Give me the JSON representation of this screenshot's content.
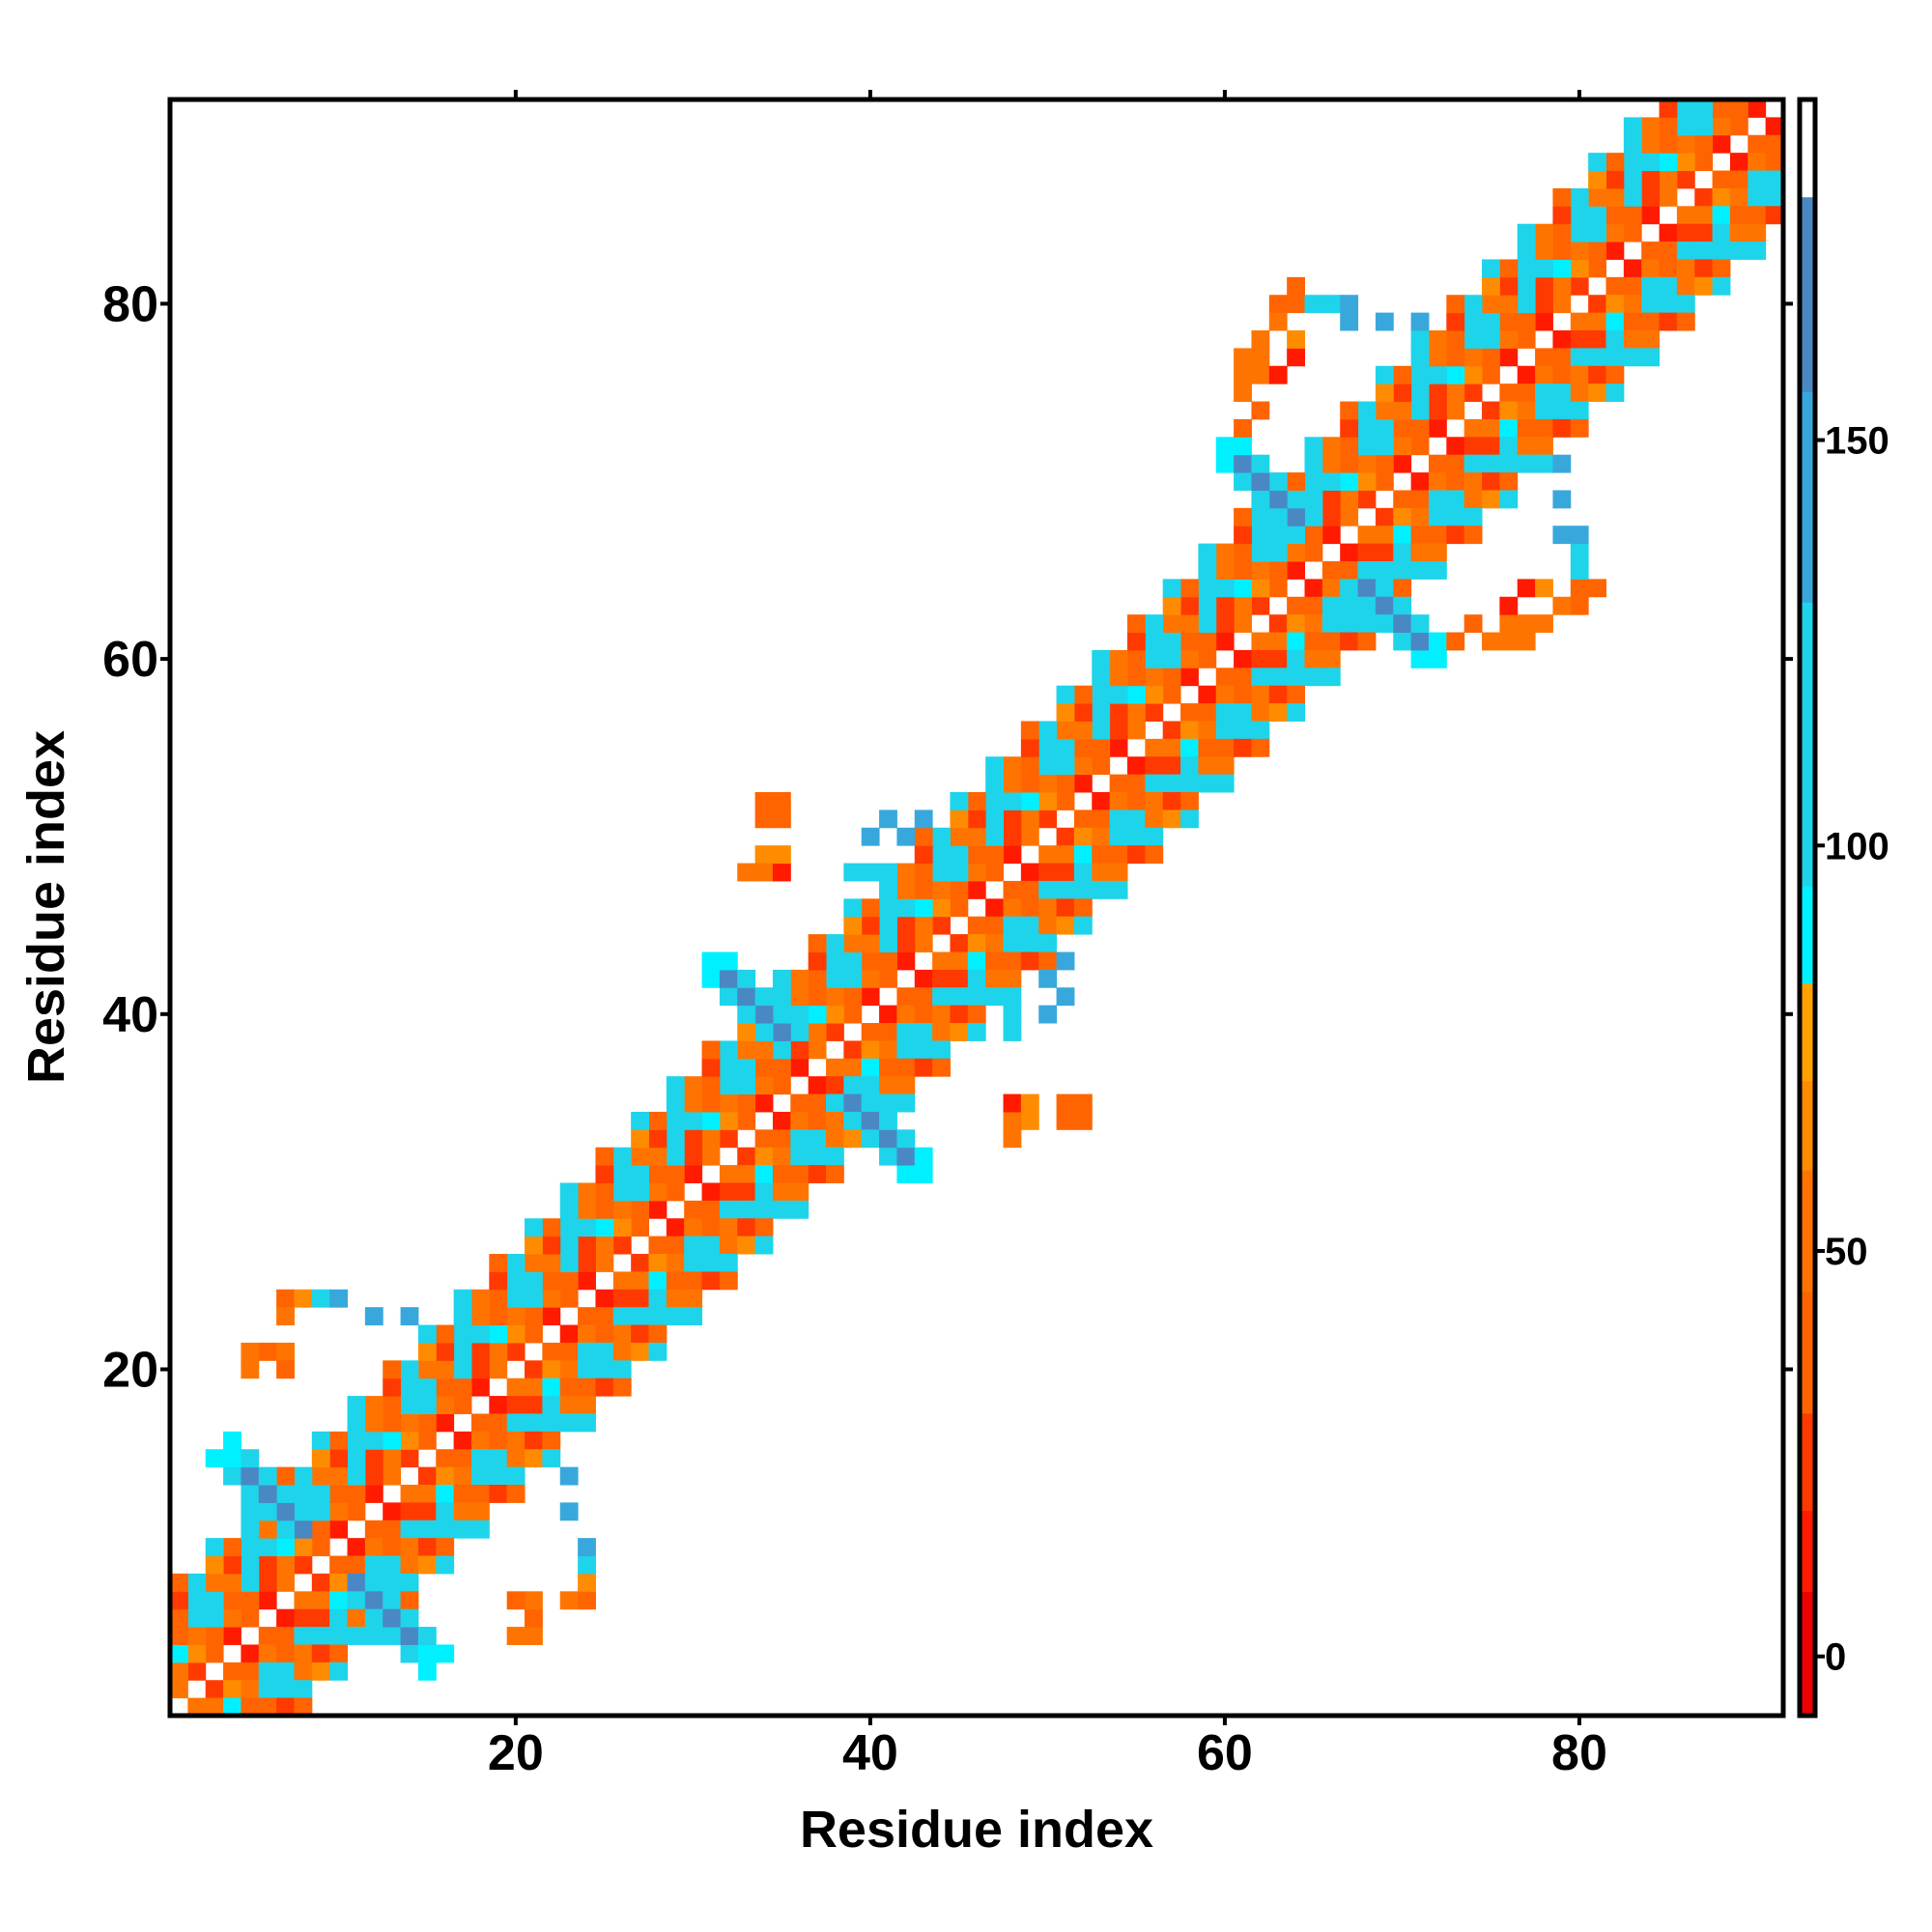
{
  "chart_data": {
    "type": "heatmap",
    "title": "",
    "xlabel": "Residue index",
    "ylabel": "Residue index",
    "xlim": [
      0.5,
      91.5
    ],
    "ylim": [
      0.5,
      91.5
    ],
    "n_residues": 91,
    "x_ticks": [
      20,
      40,
      60,
      80
    ],
    "y_ticks": [
      20,
      40,
      60,
      80
    ],
    "x_tick_labels": [
      "20",
      "40",
      "60",
      "80"
    ],
    "y_tick_labels": [
      "20",
      "40",
      "60",
      "80"
    ],
    "symmetric": true,
    "diagonal_bands": [
      {
        "offset": 1,
        "values": [
          40,
          15,
          55,
          25,
          45,
          10
        ]
      },
      {
        "offset": 2,
        "values": [
          60,
          35,
          20,
          50,
          70,
          45
        ]
      },
      {
        "offset": 3,
        "values": [
          100,
          45,
          110,
          30,
          95,
          55
        ]
      },
      {
        "offset": 4,
        "values": [
          105,
          120,
          60,
          100,
          115,
          40
        ]
      },
      {
        "offset": 5,
        "values": [
          40,
          100,
          55,
          25,
          110,
          60
        ]
      },
      {
        "offset": 6,
        "values": [
          50,
          30,
          105,
          65,
          45,
          100
        ]
      },
      {
        "offset": 7,
        "values": [
          110,
          null,
          45,
          null,
          100,
          null
        ]
      }
    ],
    "hairpins": [
      {
        "center": 9.5,
        "min_sep": 3,
        "max_sep": 12,
        "core_value": 160,
        "edge_value": 125
      },
      {
        "center": 37,
        "min_sep": 3,
        "max_sep": 12,
        "core_value": 160,
        "edge_value": 120
      },
      {
        "center": 66,
        "min_sep": 3,
        "max_sep": 12,
        "core_value": 165,
        "edge_value": 120
      }
    ],
    "extra_contacts": [
      [
        7,
        24,
        45
      ],
      [
        7,
        23,
        50
      ],
      [
        8,
        24,
        65
      ],
      [
        9,
        24,
        100
      ],
      [
        10,
        24,
        150
      ],
      [
        12,
        23,
        150
      ],
      [
        14,
        23,
        150
      ],
      [
        5,
        21,
        60
      ],
      [
        6,
        21,
        45
      ],
      [
        7,
        21,
        50
      ],
      [
        5,
        20,
        50
      ],
      [
        7,
        20,
        40
      ],
      [
        34,
        52,
        40
      ],
      [
        34,
        51,
        45
      ],
      [
        41,
        51,
        150
      ],
      [
        43,
        51,
        150
      ],
      [
        34,
        49,
        70
      ],
      [
        33,
        48,
        50
      ],
      [
        34,
        48,
        45
      ],
      [
        35,
        48,
        10
      ],
      [
        39,
        48,
        110
      ],
      [
        40,
        48,
        110
      ],
      [
        50,
        42,
        150
      ],
      [
        50,
        40,
        150
      ],
      [
        48,
        35,
        10
      ],
      [
        49,
        35,
        70
      ],
      [
        51,
        35,
        45
      ],
      [
        52,
        35,
        45
      ],
      [
        48,
        34,
        50
      ],
      [
        48,
        33,
        50
      ],
      [
        63,
        80,
        45
      ],
      [
        63,
        79,
        50
      ],
      [
        66,
        80,
        110
      ],
      [
        67,
        80,
        150
      ],
      [
        69,
        79,
        150
      ],
      [
        71,
        79,
        150
      ],
      [
        61,
        77,
        50
      ],
      [
        61,
        76,
        55
      ],
      [
        62,
        76,
        45
      ],
      [
        63,
        76,
        10
      ],
      [
        61,
        75,
        50
      ],
      [
        77,
        64,
        10
      ],
      [
        78,
        64,
        70
      ],
      [
        80,
        64,
        45
      ],
      [
        81,
        64,
        45
      ],
      [
        79,
        69,
        150
      ],
      [
        79,
        67,
        150
      ],
      [
        80,
        66,
        130
      ],
      [
        80,
        65,
        110
      ],
      [
        74,
        62,
        45
      ],
      [
        76,
        62,
        55
      ],
      [
        77,
        62,
        50
      ],
      [
        78,
        62,
        50
      ],
      [
        73,
        61,
        40
      ]
    ],
    "colorbar": {
      "range": [
        -7.3,
        192
      ],
      "ticks": [
        0,
        50,
        100,
        150
      ],
      "tick_labels": [
        "0",
        "50",
        "100",
        "150"
      ],
      "stops": [
        {
          "max": 8,
          "color": "#ee0000"
        },
        {
          "max": 18,
          "color": "#ff1a00"
        },
        {
          "max": 30,
          "color": "#ff3a00"
        },
        {
          "max": 45,
          "color": "#ff6400"
        },
        {
          "max": 60,
          "color": "#ff7400"
        },
        {
          "max": 71,
          "color": "#ff8c00"
        },
        {
          "max": 83,
          "color": "#ffa200"
        },
        {
          "max": 95,
          "color": "#00f0ff"
        },
        {
          "max": 130,
          "color": "#1ed4ea"
        },
        {
          "max": 156,
          "color": "#38a8dc"
        },
        {
          "max": 180,
          "color": "#4a88c4"
        },
        {
          "max": 192,
          "color": "#ffffff"
        }
      ]
    }
  }
}
